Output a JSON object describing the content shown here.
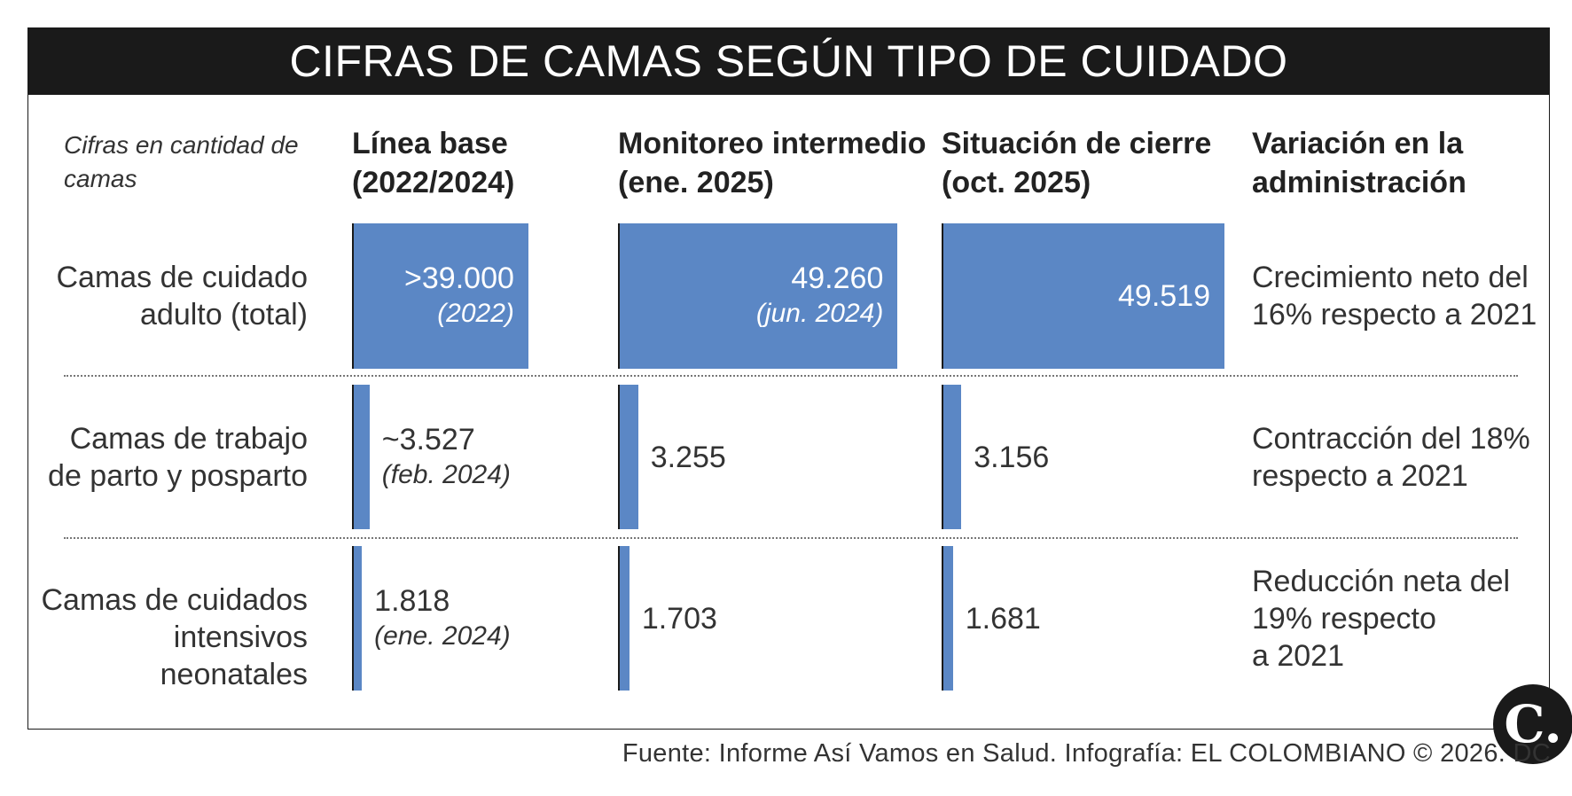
{
  "title": "CIFRAS DE CAMAS SEGÚN TIPO DE CUIDADO",
  "note": "Cifras en cantidad de camas",
  "columns": {
    "base": "Línea base\n(2022/2024)",
    "mid": "Monitoreo intermedio\n(ene. 2025)",
    "close": "Situación de cierre\n(oct. 2025)",
    "variation": "Variación en la\nadministración"
  },
  "colors": {
    "bar": "#5b87c5",
    "header_bg": "#1a1a1a"
  },
  "chart_data": {
    "type": "bar",
    "categories": [
      "Camas de cuidado adulto (total)",
      "Camas de trabajo de parto y posparto",
      "Camas de cuidados intensivos neonatales"
    ],
    "series": [
      {
        "name": "Línea base (2022/2024)",
        "values": [
          39000,
          3527,
          1818
        ]
      },
      {
        "name": "Monitoreo intermedio (ene. 2025)",
        "values": [
          49260,
          3255,
          1703
        ]
      },
      {
        "name": "Situación de cierre (oct. 2025)",
        "values": [
          49519,
          3156,
          1681
        ]
      }
    ]
  },
  "rows": [
    {
      "label": "Camas de cuidado\nadulto (total)",
      "base": {
        "text": ">39.000",
        "sub": "(2022)"
      },
      "mid": {
        "text": "49.260",
        "sub": "(jun. 2024)"
      },
      "close": {
        "text": "49.519",
        "sub": ""
      },
      "variation": "Crecimiento neto del\n16% respecto a 2021"
    },
    {
      "label": "Camas de trabajo\nde parto y posparto",
      "base": {
        "text": "~3.527",
        "sub": "(feb. 2024)"
      },
      "mid": {
        "text": "3.255",
        "sub": ""
      },
      "close": {
        "text": "3.156",
        "sub": ""
      },
      "variation": "Contracción del 18%\nrespecto a 2021"
    },
    {
      "label": "Camas de cuidados\nintensivos neonatales",
      "base": {
        "text": "1.818",
        "sub": "(ene. 2024)"
      },
      "mid": {
        "text": "1.703",
        "sub": ""
      },
      "close": {
        "text": "1.681",
        "sub": ""
      },
      "variation": "Reducción neta del\n19% respecto\na 2021"
    }
  ],
  "logo": "C.",
  "source": "Fuente: Informe Así Vamos en Salud. Infografía: EL COLOMBIANO © 2026. DC"
}
